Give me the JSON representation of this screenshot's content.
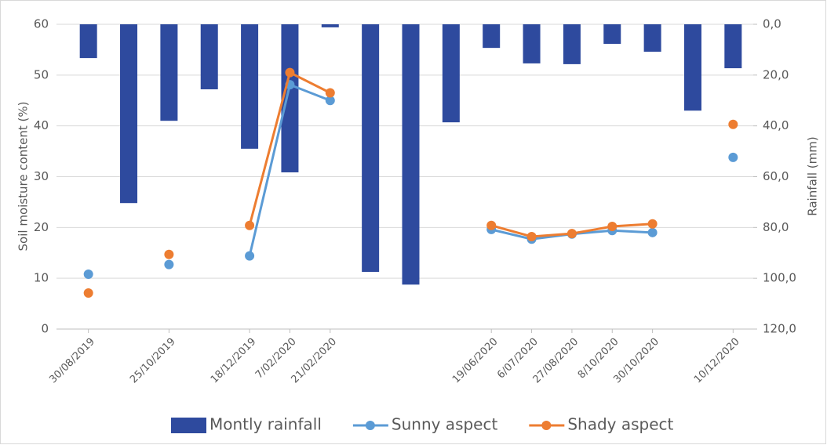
{
  "chart_data": {
    "type": "bar_line",
    "categories": [
      "30/08/2019",
      null,
      "25/10/2019",
      null,
      "18/12/2019",
      "7/02/2020",
      "21/02/2020",
      null,
      null,
      null,
      "19/06/2020",
      "6/07/2020",
      "27/08/2020",
      "8/10/2020",
      "30/10/2020",
      null,
      "10/12/2020"
    ],
    "series": [
      {
        "name": "Montly rainfall",
        "color": "#2e4a9e",
        "axis": "y2",
        "kind": "bar",
        "values": [
          13.3,
          70.4,
          38,
          25.6,
          49,
          58.3,
          1.2,
          97.5,
          102.5,
          38.6,
          9.3,
          15.4,
          15.7,
          7.7,
          10.8,
          34,
          17.3
        ]
      },
      {
        "name": "Sunny aspect",
        "color": "#5b9bd5",
        "kind": "line",
        "values": [
          10.8,
          null,
          12.7,
          null,
          14.4,
          48.1,
          45,
          null,
          null,
          null,
          19.6,
          17.7,
          18.7,
          19.4,
          19.0,
          null,
          33.8
        ]
      },
      {
        "name": "Shady aspect",
        "color": "#ed7d31",
        "kind": "line",
        "values": [
          7.1,
          null,
          14.7,
          null,
          20.4,
          50.5,
          46.5,
          null,
          null,
          null,
          20.4,
          18.2,
          18.8,
          20.2,
          20.7,
          null,
          40.3
        ]
      }
    ],
    "ylabel": "Soil moisture content (%)",
    "y2label": "Rainfall  (mm)",
    "ylim": [
      0,
      60
    ],
    "yticks": [
      0,
      10,
      20,
      30,
      40,
      50,
      60
    ],
    "y2lim": [
      120,
      0
    ],
    "y2ticks": [
      {
        "value": 0,
        "label": "0,0"
      },
      {
        "value": 20,
        "label": "20,0"
      },
      {
        "value": 40,
        "label": "40,0"
      },
      {
        "value": 60,
        "label": "60,0"
      },
      {
        "value": 80,
        "label": "80,0"
      },
      {
        "value": 100,
        "label": "100,0"
      },
      {
        "value": 120,
        "label": "120,0"
      }
    ],
    "grid": true,
    "legend": "bottom"
  }
}
